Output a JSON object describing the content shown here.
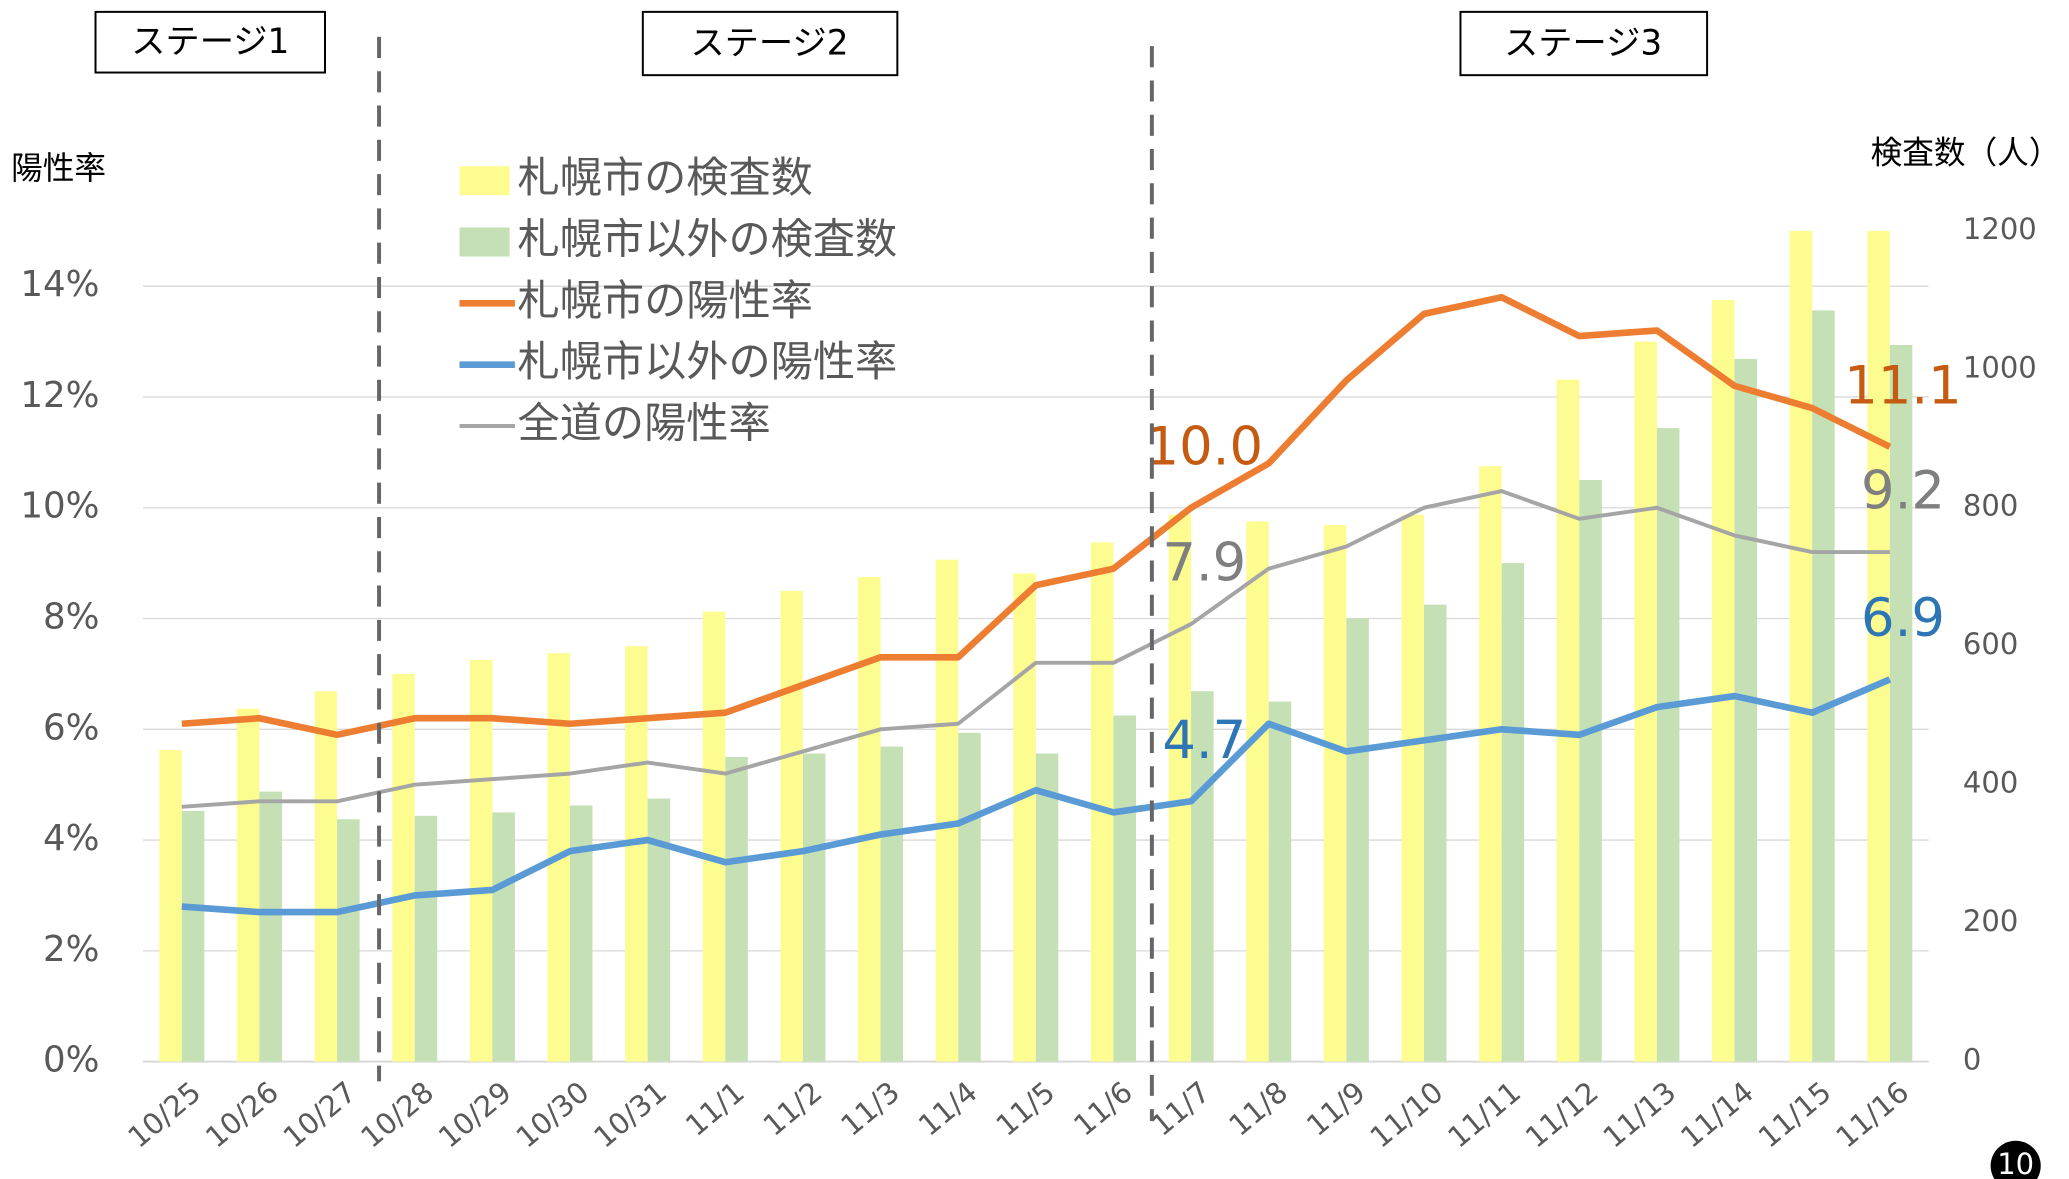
{
  "chart_data": {
    "type": "bar-line",
    "y_axis_label": "陽性率",
    "y2_axis_label": "検査数（人）",
    "stages": [
      "ステージ1",
      "ステージ2",
      "ステージ3"
    ],
    "page_number": "10",
    "categories": [
      "10/25",
      "10/26",
      "10/27",
      "10/28",
      "10/29",
      "10/30",
      "10/31",
      "11/1",
      "11/2",
      "11/3",
      "11/4",
      "11/5",
      "11/6",
      "11/7",
      "11/8",
      "11/9",
      "11/10",
      "11/11",
      "11/12",
      "11/13",
      "11/14",
      "11/15",
      "11/16"
    ],
    "ylim": [
      0,
      15
    ],
    "yticks": [
      {
        "value": 0,
        "label": "0%"
      },
      {
        "value": 2,
        "label": "2%"
      },
      {
        "value": 4,
        "label": "4%"
      },
      {
        "value": 6,
        "label": "6%"
      },
      {
        "value": 8,
        "label": "8%"
      },
      {
        "value": 10,
        "label": "10%"
      },
      {
        "value": 12,
        "label": "12%"
      },
      {
        "value": 14,
        "label": "14%"
      }
    ],
    "y2lim": [
      0,
      1200
    ],
    "y2ticks": [
      0,
      200,
      400,
      600,
      800,
      1000,
      1200
    ],
    "grid": true,
    "legend": "upper left",
    "series": [
      {
        "name": "札幌市の検査数",
        "type": "bar",
        "axis": "y2",
        "color": "#fdfc91",
        "values": [
          450,
          510,
          535,
          560,
          580,
          590,
          600,
          650,
          680,
          700,
          725,
          705,
          750,
          790,
          780,
          775,
          790,
          860,
          985,
          1040,
          1100,
          1200,
          1200
        ]
      },
      {
        "name": "札幌市以外の検査数",
        "type": "bar",
        "axis": "y2",
        "color": "#c5e0b4",
        "values": [
          362,
          390,
          350,
          355,
          360,
          370,
          380,
          440,
          445,
          455,
          475,
          445,
          500,
          535,
          520,
          640,
          660,
          720,
          840,
          915,
          1015,
          1085,
          1035
        ]
      },
      {
        "name": "札幌市の陽性率",
        "type": "line",
        "color": "#ed7d31",
        "label_color": "#c55a11",
        "width": 5,
        "values": [
          6.1,
          6.2,
          5.9,
          6.2,
          6.2,
          6.1,
          6.2,
          6.3,
          6.8,
          7.3,
          7.3,
          8.6,
          8.9,
          10.0,
          10.8,
          12.3,
          13.5,
          13.8,
          13.1,
          13.2,
          12.2,
          11.8,
          11.1
        ],
        "value_labels": [
          null,
          null,
          null,
          null,
          null,
          null,
          null,
          null,
          null,
          null,
          null,
          null,
          null,
          "10.0",
          null,
          null,
          null,
          null,
          null,
          null,
          null,
          null,
          "11.1"
        ]
      },
      {
        "name": "札幌市以外の陽性率",
        "type": "line",
        "color": "#5b9bd5",
        "label_color": "#2e75b6",
        "width": 5,
        "values": [
          2.8,
          2.7,
          2.7,
          3.0,
          3.1,
          3.8,
          4.0,
          3.6,
          3.8,
          4.1,
          4.3,
          4.9,
          4.5,
          4.7,
          6.1,
          5.6,
          5.8,
          6.0,
          5.9,
          6.4,
          6.6,
          6.3,
          6.9
        ],
        "value_labels": [
          null,
          null,
          null,
          null,
          null,
          null,
          null,
          null,
          null,
          null,
          null,
          null,
          null,
          "4.7",
          null,
          null,
          null,
          null,
          null,
          null,
          null,
          null,
          "6.9"
        ]
      },
      {
        "name": "全道の陽性率",
        "type": "line",
        "color": "#a5a5a5",
        "label_color": "#7f7f7f",
        "width": 3,
        "values": [
          4.6,
          4.7,
          4.7,
          5.0,
          5.1,
          5.2,
          5.4,
          5.2,
          5.6,
          6.0,
          6.1,
          7.2,
          7.2,
          7.9,
          8.9,
          9.3,
          10.0,
          10.3,
          9.8,
          10.0,
          9.5,
          9.2,
          9.2
        ],
        "value_labels": [
          null,
          null,
          null,
          null,
          null,
          null,
          null,
          null,
          null,
          null,
          null,
          null,
          null,
          "7.9",
          null,
          null,
          null,
          null,
          null,
          null,
          null,
          null,
          "9.2"
        ]
      }
    ]
  }
}
